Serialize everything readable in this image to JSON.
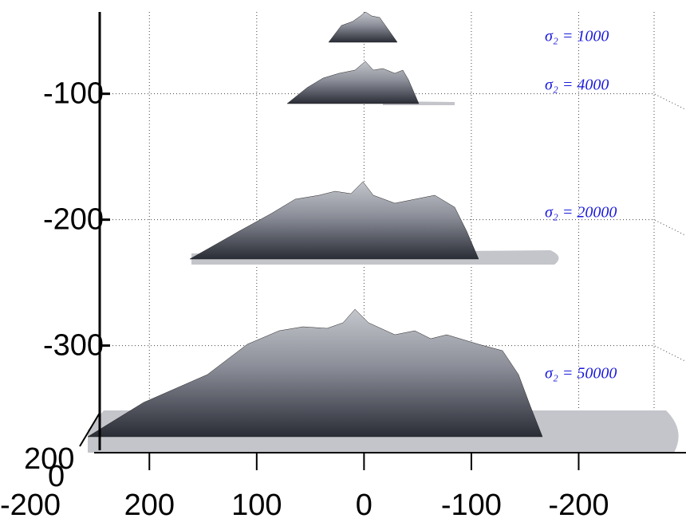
{
  "chart_data": {
    "type": "surface",
    "xlim": [
      250,
      -300
    ],
    "xticks": [
      200,
      100,
      0,
      -100,
      -200
    ],
    "zlim": [
      -380,
      -35
    ],
    "zticks": [
      -100,
      -200,
      -300
    ],
    "yticks": [
      200,
      0,
      -200
    ],
    "grid": true,
    "annotations": [
      "σ₂ = 1000",
      "σ₂ = 4000",
      "σ₂ = 20000",
      "σ₂ = 50000"
    ],
    "annotation_color": "#1a1adc"
  }
}
